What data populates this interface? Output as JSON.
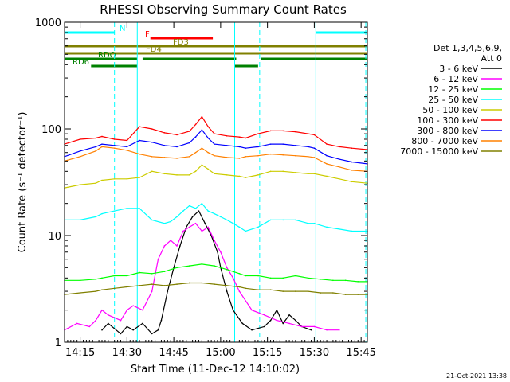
{
  "chart_data": {
    "type": "line",
    "title": "RHESSI Observing Summary Count Rates",
    "xlabel": "Start Time (11-Dec-12 14:10:02)",
    "ylabel": "Count Rate (s⁻¹ detector⁻¹)",
    "yscale": "log",
    "ylim": [
      1,
      1000
    ],
    "xlim_minutes": [
      0,
      97
    ],
    "x_ticks": [
      {
        "m": 5,
        "label": "14:15"
      },
      {
        "m": 20,
        "label": "14:30"
      },
      {
        "m": 35,
        "label": "14:45"
      },
      {
        "m": 50,
        "label": "15:00"
      },
      {
        "m": 65,
        "label": "15:15"
      },
      {
        "m": 80,
        "label": "15:30"
      },
      {
        "m": 95,
        "label": "15:45"
      }
    ],
    "y_ticks": [
      {
        "v": 1,
        "label": "1"
      },
      {
        "v": 10,
        "label": "10"
      },
      {
        "v": 100,
        "label": "100"
      },
      {
        "v": 1000,
        "label": "1000"
      }
    ],
    "legend_header": [
      "Det 1,3,4,5,6,9,",
      "Att 0"
    ],
    "legend_position": "right",
    "series": [
      {
        "name": "3 - 6 keV",
        "color": "#000000",
        "x": [
          12,
          14,
          18,
          20,
          22,
          25,
          28,
          30,
          31,
          33,
          35,
          37,
          39,
          41,
          43,
          45,
          47,
          49,
          50,
          52,
          54,
          57,
          60,
          64,
          66,
          68,
          70,
          72,
          74,
          76,
          79
        ],
        "y": [
          1.3,
          1.5,
          1.2,
          1.4,
          1.3,
          1.5,
          1.2,
          1.3,
          1.6,
          3,
          5,
          8,
          12,
          15,
          17,
          13,
          10,
          7,
          5,
          3,
          2,
          1.5,
          1.3,
          1.4,
          1.6,
          2,
          1.5,
          1.8,
          1.6,
          1.4,
          1.3
        ]
      },
      {
        "name": "6 - 12 keV",
        "color": "#ff00ff",
        "x": [
          0,
          4,
          8,
          10,
          12,
          14,
          18,
          20,
          22,
          25,
          28,
          30,
          32,
          34,
          36,
          38,
          40,
          42,
          44,
          46,
          48,
          50,
          52,
          54,
          56,
          60,
          64,
          68,
          72,
          76,
          80,
          84,
          88
        ],
        "y": [
          1.3,
          1.5,
          1.4,
          1.6,
          2,
          1.8,
          1.6,
          2,
          2.2,
          2,
          3,
          6,
          8,
          9,
          8,
          11,
          12,
          13,
          11,
          12,
          9,
          7,
          5,
          4,
          3,
          2,
          1.8,
          1.6,
          1.5,
          1.4,
          1.4,
          1.3,
          1.3
        ]
      },
      {
        "name": "12 - 25 keV",
        "color": "#00ff00",
        "x": [
          0,
          5,
          10,
          12,
          16,
          20,
          24,
          28,
          32,
          36,
          40,
          44,
          48,
          52,
          56,
          58,
          62,
          66,
          70,
          74,
          78,
          82,
          86,
          90,
          94,
          97
        ],
        "y": [
          3.8,
          3.8,
          3.9,
          4,
          4.2,
          4.2,
          4.5,
          4.4,
          4.6,
          5,
          5.2,
          5.4,
          5.2,
          4.8,
          4.4,
          4.2,
          4.2,
          4,
          4,
          4.2,
          4,
          3.9,
          3.8,
          3.8,
          3.7,
          3.7
        ]
      },
      {
        "name": "25 - 50 keV",
        "color": "#00ffff",
        "x": [
          0,
          5,
          10,
          12,
          16,
          20,
          24,
          28,
          32,
          34,
          36,
          38,
          40,
          42,
          44,
          46,
          48,
          50,
          52,
          54,
          56,
          58,
          62,
          66,
          70,
          74,
          78,
          80,
          84,
          88,
          92,
          97
        ],
        "y": [
          14,
          14,
          15,
          16,
          17,
          18,
          18,
          14,
          13,
          13.5,
          15,
          17,
          19,
          18,
          20,
          17,
          16,
          15,
          14,
          13,
          12,
          11,
          12,
          14,
          14,
          14,
          13,
          13,
          12,
          11.5,
          11,
          11
        ]
      },
      {
        "name": "50 - 100 keV",
        "color": "#cccc00",
        "x": [
          0,
          5,
          10,
          12,
          16,
          20,
          24,
          28,
          32,
          36,
          40,
          42,
          44,
          46,
          48,
          52,
          56,
          58,
          62,
          66,
          70,
          74,
          78,
          80,
          84,
          88,
          92,
          97
        ],
        "y": [
          28,
          30,
          31,
          33,
          34,
          34,
          35,
          40,
          38,
          37,
          37,
          40,
          46,
          42,
          38,
          37,
          36,
          35,
          37,
          40,
          40,
          39,
          38,
          38,
          36,
          34,
          32,
          31
        ]
      },
      {
        "name": "100 - 300 keV",
        "color": "#ff0000",
        "x": [
          0,
          5,
          10,
          12,
          16,
          20,
          24,
          28,
          32,
          36,
          40,
          42,
          44,
          46,
          48,
          52,
          56,
          58,
          62,
          66,
          70,
          74,
          78,
          80,
          84,
          88,
          92,
          97
        ],
        "y": [
          72,
          80,
          82,
          85,
          80,
          78,
          105,
          100,
          92,
          88,
          95,
          110,
          130,
          105,
          90,
          86,
          84,
          82,
          90,
          96,
          96,
          94,
          90,
          88,
          72,
          68,
          66,
          64
        ]
      },
      {
        "name": "300 - 800 keV",
        "color": "#0000ff",
        "x": [
          0,
          5,
          10,
          12,
          16,
          20,
          24,
          28,
          32,
          36,
          40,
          42,
          44,
          46,
          48,
          52,
          56,
          58,
          62,
          66,
          70,
          74,
          78,
          80,
          84,
          88,
          92,
          97
        ],
        "y": [
          55,
          62,
          68,
          72,
          70,
          68,
          78,
          75,
          70,
          68,
          74,
          84,
          98,
          82,
          72,
          70,
          68,
          66,
          68,
          72,
          72,
          70,
          68,
          66,
          56,
          52,
          49,
          47
        ]
      },
      {
        "name": "800 - 7000 keV",
        "color": "#ff8000",
        "x": [
          0,
          5,
          10,
          12,
          16,
          20,
          24,
          28,
          32,
          36,
          40,
          42,
          44,
          46,
          48,
          52,
          56,
          58,
          62,
          66,
          70,
          74,
          78,
          80,
          84,
          88,
          92,
          97
        ],
        "y": [
          50,
          55,
          62,
          68,
          66,
          63,
          58,
          55,
          54,
          53,
          55,
          60,
          66,
          60,
          56,
          54,
          53,
          55,
          56,
          58,
          57,
          56,
          55,
          54,
          47,
          44,
          41,
          40
        ]
      },
      {
        "name": "7000 - 15000 keV",
        "color": "#808000",
        "x": [
          0,
          5,
          10,
          12,
          16,
          20,
          24,
          28,
          32,
          36,
          40,
          44,
          48,
          52,
          56,
          58,
          62,
          66,
          70,
          74,
          78,
          82,
          86,
          90,
          94,
          97
        ],
        "y": [
          2.8,
          2.9,
          3,
          3.1,
          3.2,
          3.3,
          3.4,
          3.5,
          3.4,
          3.5,
          3.6,
          3.6,
          3.5,
          3.4,
          3.3,
          3.2,
          3.1,
          3.1,
          3,
          3,
          3,
          2.9,
          2.9,
          2.8,
          2.8,
          2.8
        ]
      }
    ],
    "flags": [
      {
        "label": "F",
        "color": "#ff0000",
        "segments": [
          [
            27.5,
            47.5
          ]
        ],
        "level": 1
      },
      {
        "label": "FD3",
        "color": "#808000",
        "segments": [
          [
            0,
            97
          ]
        ],
        "level": 2
      },
      {
        "label": "FD4",
        "color": "#808000",
        "segments": [
          [
            0,
            97
          ]
        ],
        "level": 3
      },
      {
        "label": "RDO",
        "color": "#008000",
        "segments": [
          [
            0,
            23.3
          ],
          [
            25,
            55
          ],
          [
            63,
            97
          ]
        ],
        "level": 4
      },
      {
        "label": "RD6",
        "color": "#008000",
        "segments": [
          [
            8.5,
            23.3
          ],
          [
            54.5,
            62
          ]
        ],
        "level": 5
      },
      {
        "label": "N",
        "color": "#00ffff",
        "segments": [
          [
            0,
            16
          ],
          [
            80.5,
            97
          ]
        ],
        "level": 0
      }
    ],
    "vertical_markers": [
      {
        "x": 16,
        "color": "#00ffff",
        "style": "dashed"
      },
      {
        "x": 23.3,
        "color": "#00ffff",
        "style": "solid"
      },
      {
        "x": 54.5,
        "color": "#00ffff",
        "style": "solid"
      },
      {
        "x": 62.5,
        "color": "#00ffff",
        "style": "dashed"
      },
      {
        "x": 80.5,
        "color": "#00ffff",
        "style": "solid"
      },
      {
        "x": 96.5,
        "color": "#00ffff",
        "style": "dashed"
      }
    ],
    "date_stamp": "21-Oct-2021 13:38"
  }
}
